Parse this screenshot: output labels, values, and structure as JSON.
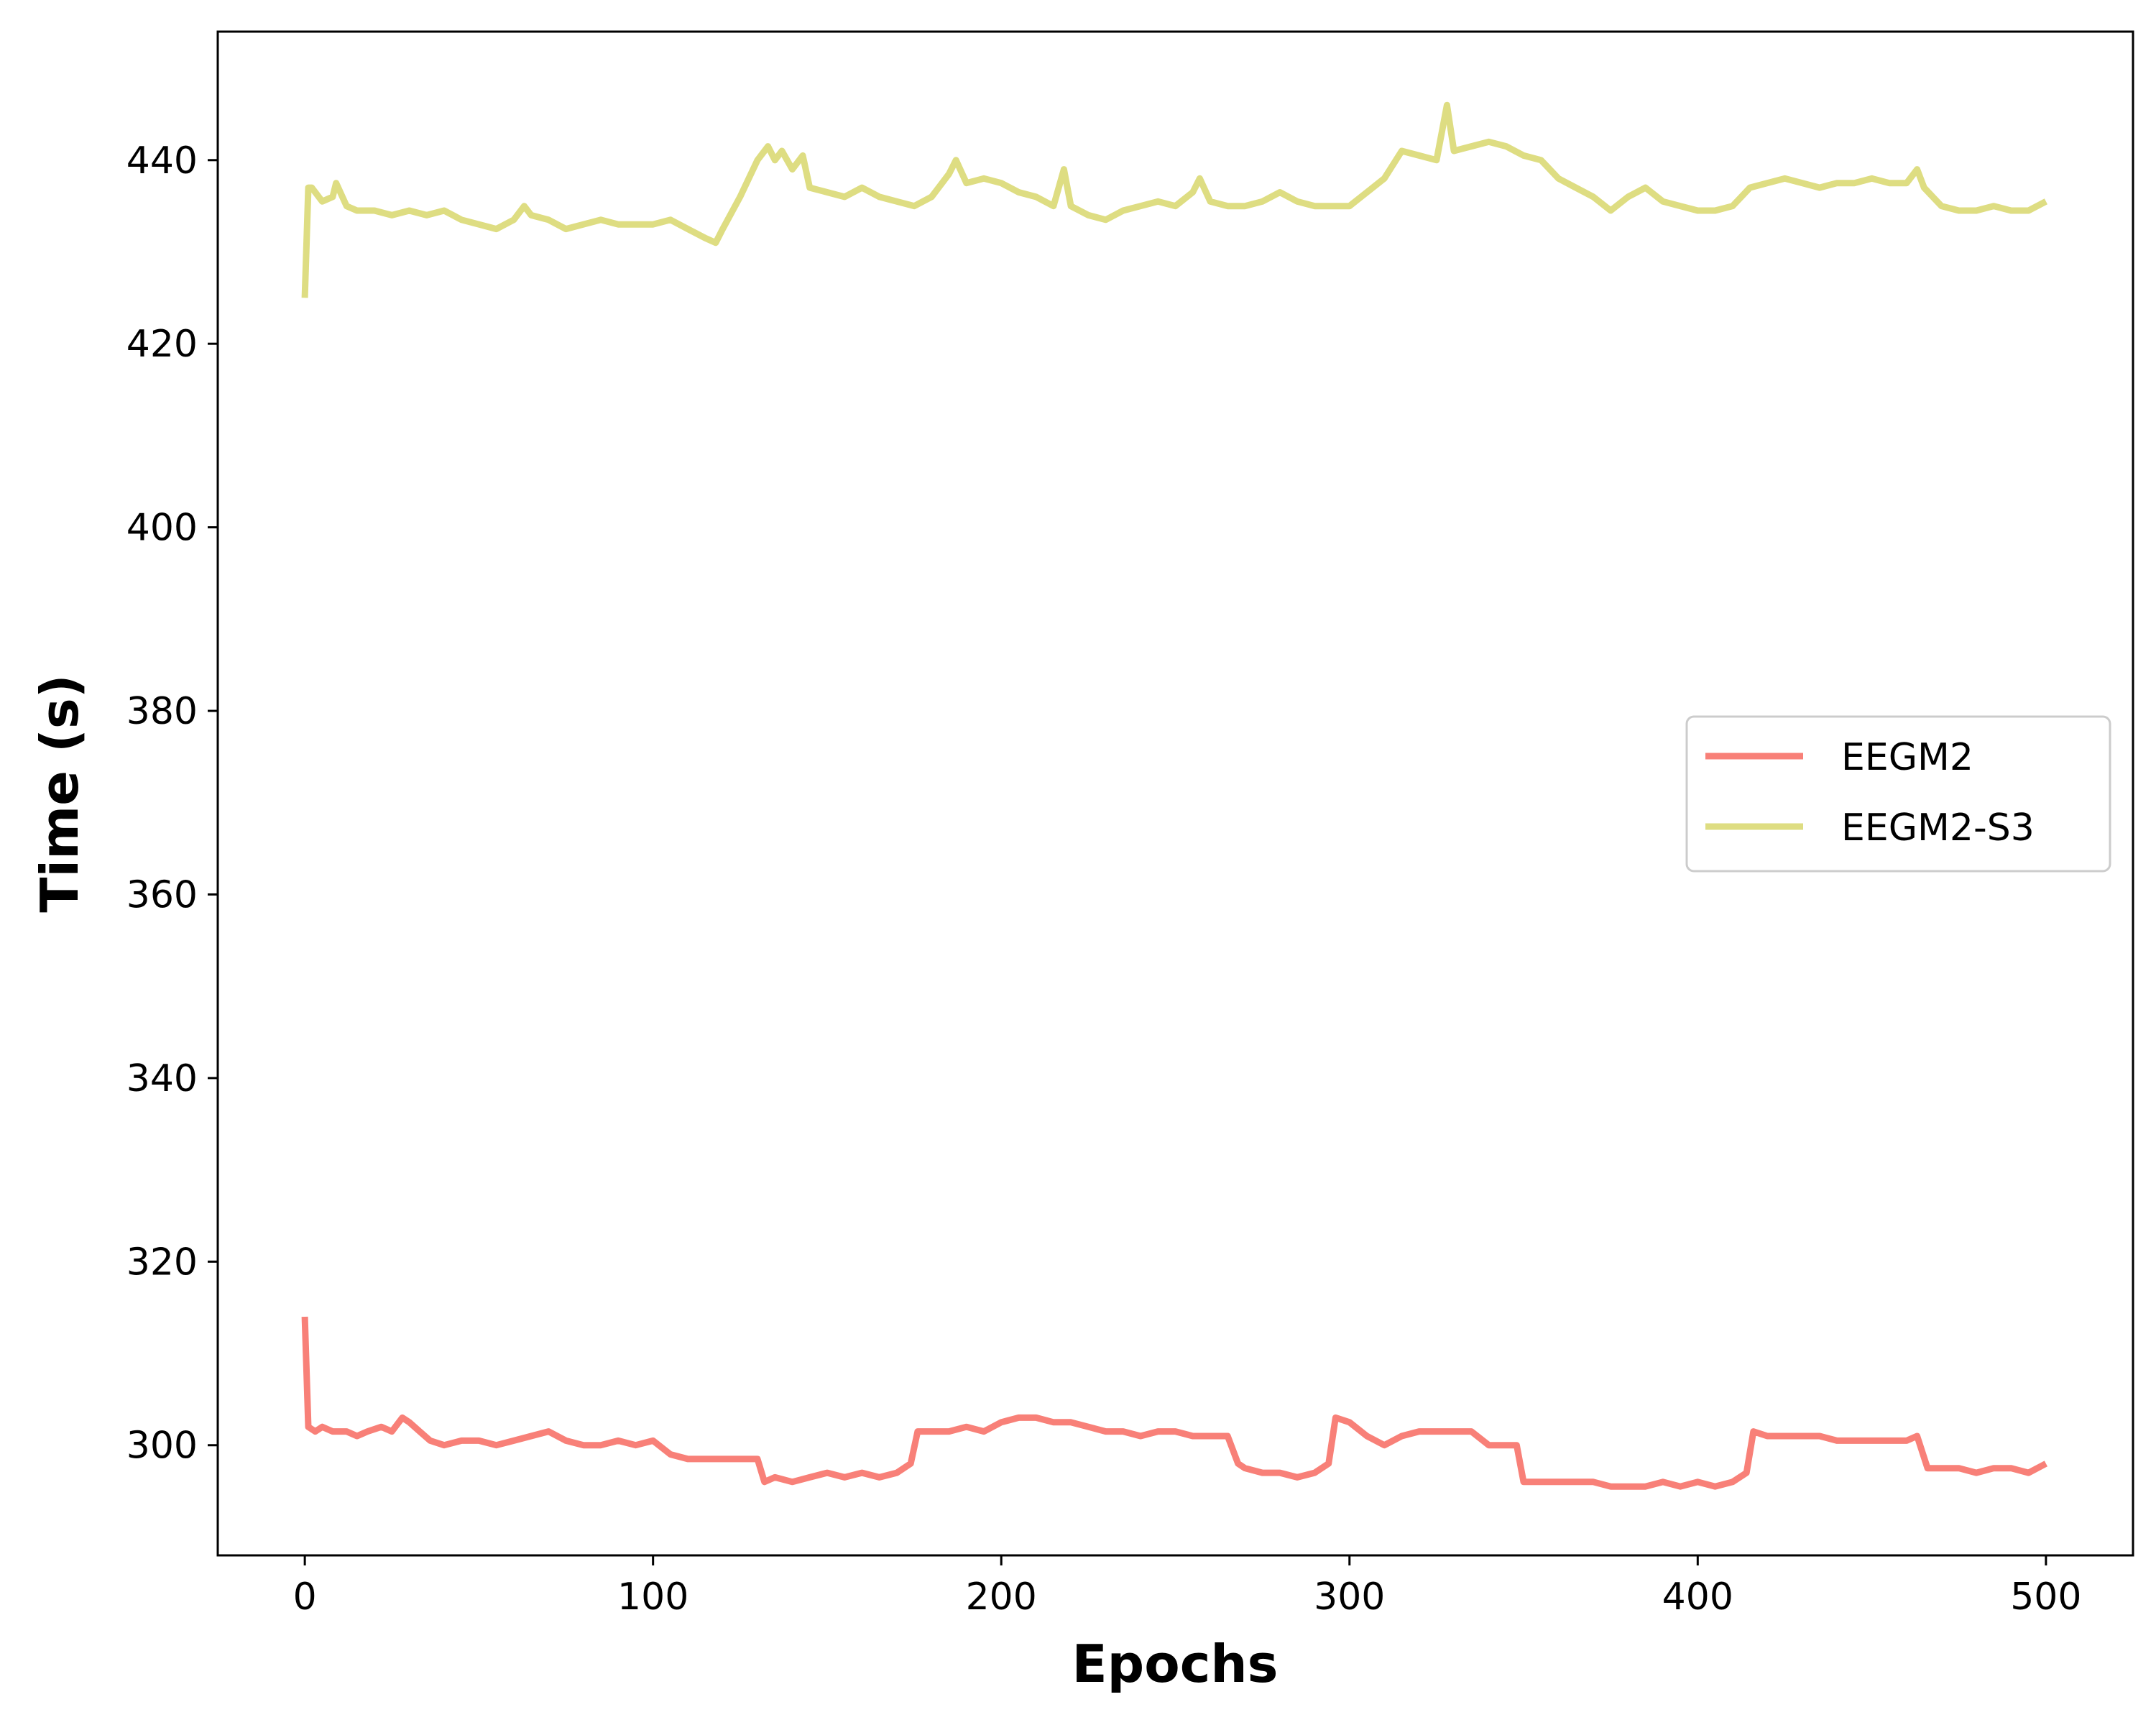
{
  "chart_data": {
    "type": "line",
    "title": "",
    "xlabel": "Epochs",
    "ylabel": "Time (s)",
    "xlim": [
      -25,
      525
    ],
    "ylim": [
      288,
      454
    ],
    "xticks": [
      0,
      100,
      200,
      300,
      400,
      500
    ],
    "yticks": [
      300,
      320,
      340,
      360,
      380,
      400,
      420,
      440
    ],
    "grid": false,
    "legend": "center-right",
    "series": [
      {
        "name": "EEGM2",
        "color": "#f88078",
        "x": [
          0,
          1,
          3,
          5,
          8,
          12,
          15,
          18,
          22,
          25,
          28,
          30,
          33,
          36,
          40,
          45,
          50,
          55,
          60,
          65,
          70,
          75,
          80,
          85,
          90,
          95,
          100,
          105,
          110,
          115,
          120,
          125,
          130,
          132,
          135,
          140,
          145,
          150,
          155,
          160,
          165,
          170,
          174,
          176,
          180,
          185,
          190,
          195,
          200,
          205,
          210,
          215,
          220,
          225,
          230,
          235,
          240,
          245,
          250,
          255,
          260,
          265,
          268,
          270,
          275,
          280,
          285,
          290,
          294,
          296,
          300,
          305,
          310,
          315,
          320,
          325,
          330,
          335,
          340,
          345,
          348,
          350,
          355,
          360,
          365,
          370,
          375,
          380,
          385,
          390,
          395,
          400,
          405,
          410,
          414,
          416,
          420,
          425,
          430,
          435,
          440,
          445,
          450,
          455,
          460,
          463,
          466,
          470,
          475,
          480,
          485,
          490,
          495,
          500
        ],
        "values": [
          314,
          302,
          301.5,
          302,
          301.5,
          301.5,
          301,
          301.5,
          302,
          301.5,
          303,
          302.5,
          301.5,
          300.5,
          300,
          300.5,
          300.5,
          300,
          300.5,
          301,
          301.5,
          300.5,
          300,
          300,
          300.5,
          300,
          300.5,
          299,
          298.5,
          298.5,
          298.5,
          298.5,
          298.5,
          296,
          296.5,
          296,
          296.5,
          297,
          296.5,
          297,
          296.5,
          297,
          298,
          301.5,
          301.5,
          301.5,
          302,
          301.5,
          302.5,
          303,
          303,
          302.5,
          302.5,
          302,
          301.5,
          301.5,
          301,
          301.5,
          301.5,
          301,
          301,
          301,
          298,
          297.5,
          297,
          297,
          296.5,
          297,
          298,
          303,
          302.5,
          301,
          300,
          301,
          301.5,
          301.5,
          301.5,
          301.5,
          300,
          300,
          300,
          296,
          296,
          296,
          296,
          296,
          295.5,
          295.5,
          295.5,
          296,
          295.5,
          296,
          295.5,
          296,
          297,
          301.5,
          301,
          301,
          301,
          301,
          300.5,
          300.5,
          300.5,
          300.5,
          300.5,
          301,
          297.5,
          297.5,
          297.5,
          297,
          297.5,
          297.5,
          297,
          298
        ]
      },
      {
        "name": "EEGM2-S3",
        "color": "#dedd82",
        "x": [
          0,
          1,
          2,
          5,
          8,
          9,
          12,
          15,
          20,
          25,
          30,
          35,
          40,
          45,
          50,
          55,
          60,
          63,
          65,
          70,
          75,
          80,
          85,
          90,
          95,
          100,
          105,
          110,
          115,
          118,
          120,
          125,
          130,
          133,
          135,
          137,
          140,
          143,
          145,
          150,
          155,
          160,
          165,
          170,
          175,
          180,
          185,
          187,
          190,
          195,
          200,
          205,
          210,
          215,
          218,
          220,
          225,
          230,
          235,
          240,
          245,
          250,
          255,
          257,
          260,
          265,
          270,
          275,
          280,
          285,
          290,
          295,
          300,
          305,
          310,
          315,
          320,
          325,
          328,
          330,
          335,
          340,
          345,
          350,
          355,
          360,
          365,
          370,
          375,
          380,
          385,
          390,
          395,
          400,
          405,
          410,
          415,
          420,
          425,
          430,
          435,
          440,
          445,
          450,
          455,
          460,
          463,
          465,
          470,
          475,
          480,
          485,
          490,
          495,
          500
        ],
        "values": [
          425,
          437,
          437,
          435.5,
          436,
          437.5,
          435,
          434.5,
          434.5,
          434,
          434.5,
          434,
          434.5,
          433.5,
          433,
          432.5,
          433.5,
          435,
          434,
          433.5,
          432.5,
          433,
          433.5,
          433,
          433,
          433,
          433.5,
          432.5,
          431.5,
          431,
          432.5,
          436,
          440,
          441.5,
          440,
          441,
          439,
          440.5,
          437,
          436.5,
          436,
          437,
          436,
          435.5,
          435,
          436,
          438.5,
          440,
          437.5,
          438,
          437.5,
          436.5,
          436,
          435,
          439,
          435,
          434,
          433.5,
          434.5,
          435,
          435.5,
          435,
          436.5,
          438,
          435.5,
          435,
          435,
          435.5,
          436.5,
          435.5,
          435,
          435,
          435,
          436.5,
          438,
          441,
          440.5,
          440,
          446,
          441,
          441.5,
          442,
          441.5,
          440.5,
          440,
          438,
          437,
          436,
          434.5,
          436,
          437,
          435.5,
          435,
          434.5,
          434.5,
          435,
          437,
          437.5,
          438,
          437.5,
          437,
          437.5,
          437.5,
          438,
          437.5,
          437.5,
          439,
          437,
          435,
          434.5,
          434.5,
          435,
          434.5,
          434.5,
          435.5
        ]
      }
    ]
  }
}
